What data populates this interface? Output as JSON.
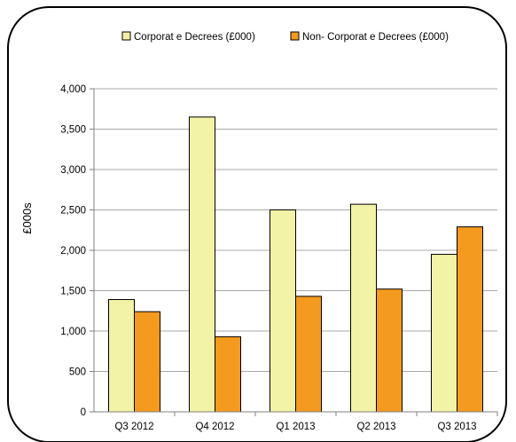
{
  "chart_data": {
    "type": "bar",
    "title": "",
    "xlabel": "",
    "ylabel": "£000s",
    "ylim": [
      0,
      4000
    ],
    "ytick_step": 500,
    "yticks": [
      "0",
      "500",
      "1,000",
      "1,500",
      "2,000",
      "2,500",
      "3,000",
      "3,500",
      "4,000"
    ],
    "categories": [
      "Q3 2012",
      "Q4 2012",
      "Q1 2013",
      "Q2 2013",
      "Q3 2013"
    ],
    "series": [
      {
        "name": "Corporat e Decrees (£000)",
        "color": "#f3f3a8",
        "values": [
          1390,
          3650,
          2500,
          2570,
          1950
        ]
      },
      {
        "name": "Non- Corporat e Decrees (£000)",
        "color": "#f39a1f",
        "values": [
          1240,
          930,
          1430,
          1520,
          2290
        ]
      }
    ],
    "grid": true,
    "legend_position": "top-right",
    "frame": "rounded-border"
  }
}
